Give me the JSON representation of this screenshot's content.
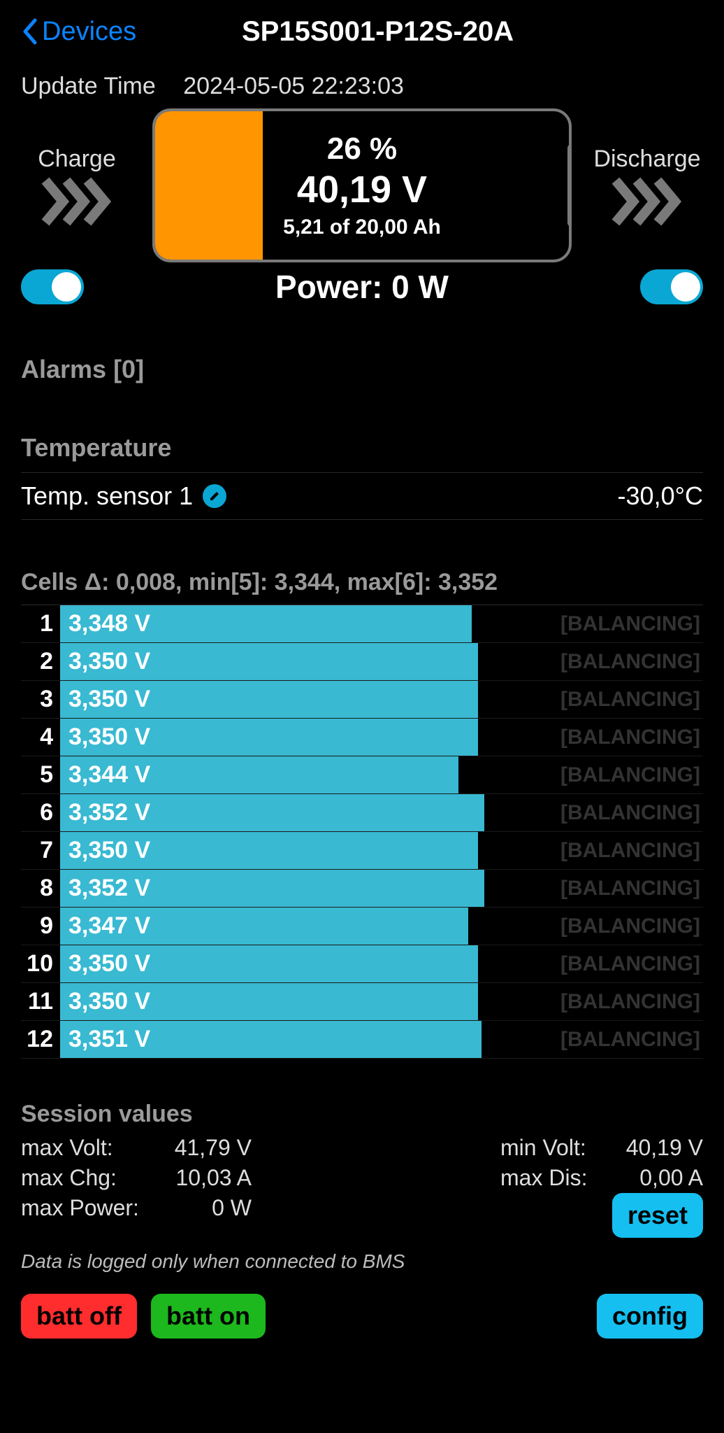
{
  "nav": {
    "back_label": "Devices",
    "title": "SP15S001-P12S-20A"
  },
  "update": {
    "label": "Update Time",
    "value": "2024-05-05 22:23:03"
  },
  "battery": {
    "charge_label": "Charge",
    "discharge_label": "Discharge",
    "percent": "26 %",
    "voltage": "40,19 V",
    "capacity": "5,21 of 20,00 Ah",
    "fill_pct": 26,
    "fill_color": "#ff9500",
    "power_label": "Power: 0 W",
    "charge_toggle": true,
    "discharge_toggle": true,
    "toggle_color": "#0aa7d4",
    "chevron_color": "#7a7a7a"
  },
  "alarms": {
    "header": "Alarms [0]"
  },
  "temperature": {
    "header": "Temperature",
    "sensor_label": "Temp. sensor 1",
    "value": "-30,0°C",
    "edit_color": "#0aa7d4"
  },
  "cells": {
    "summary": "Cells Δ: 0,008, min[5]: 3,344, max[6]: 3,352",
    "bar_color": "#39b9d2",
    "status_color": "#333333",
    "min_scale": 3.34,
    "max_scale": 3.36,
    "items": [
      {
        "idx": "1",
        "v_text": "3,348 V",
        "v_num": 3.348,
        "status": "[BALANCING]"
      },
      {
        "idx": "2",
        "v_text": "3,350 V",
        "v_num": 3.35,
        "status": "[BALANCING]"
      },
      {
        "idx": "3",
        "v_text": "3,350 V",
        "v_num": 3.35,
        "status": "[BALANCING]"
      },
      {
        "idx": "4",
        "v_text": "3,350 V",
        "v_num": 3.35,
        "status": "[BALANCING]"
      },
      {
        "idx": "5",
        "v_text": "3,344 V",
        "v_num": 3.344,
        "status": "[BALANCING]"
      },
      {
        "idx": "6",
        "v_text": "3,352 V",
        "v_num": 3.352,
        "status": "[BALANCING]"
      },
      {
        "idx": "7",
        "v_text": "3,350 V",
        "v_num": 3.35,
        "status": "[BALANCING]"
      },
      {
        "idx": "8",
        "v_text": "3,352 V",
        "v_num": 3.352,
        "status": "[BALANCING]"
      },
      {
        "idx": "9",
        "v_text": "3,347 V",
        "v_num": 3.347,
        "status": "[BALANCING]"
      },
      {
        "idx": "10",
        "v_text": "3,350 V",
        "v_num": 3.35,
        "status": "[BALANCING]"
      },
      {
        "idx": "11",
        "v_text": "3,350 V",
        "v_num": 3.35,
        "status": "[BALANCING]"
      },
      {
        "idx": "12",
        "v_text": "3,351 V",
        "v_num": 3.351,
        "status": "[BALANCING]"
      }
    ]
  },
  "session": {
    "header": "Session values",
    "left": [
      {
        "label": "max Volt:",
        "value": "41,79 V"
      },
      {
        "label": "max Chg:",
        "value": "10,03 A"
      },
      {
        "label": "max Power:",
        "value": "0 W"
      }
    ],
    "right": [
      {
        "label": "min Volt:",
        "value": "40,19 V"
      },
      {
        "label": "max Dis:",
        "value": "0,00 A"
      }
    ],
    "note": "Data is logged only when connected to BMS"
  },
  "buttons": {
    "reset": "reset",
    "config": "config",
    "batt_off": "batt off",
    "batt_on": "batt on",
    "reset_bg": "#15bff0",
    "config_bg": "#15bff0",
    "off_bg": "#ff2d2d",
    "on_bg": "#1db81d"
  }
}
